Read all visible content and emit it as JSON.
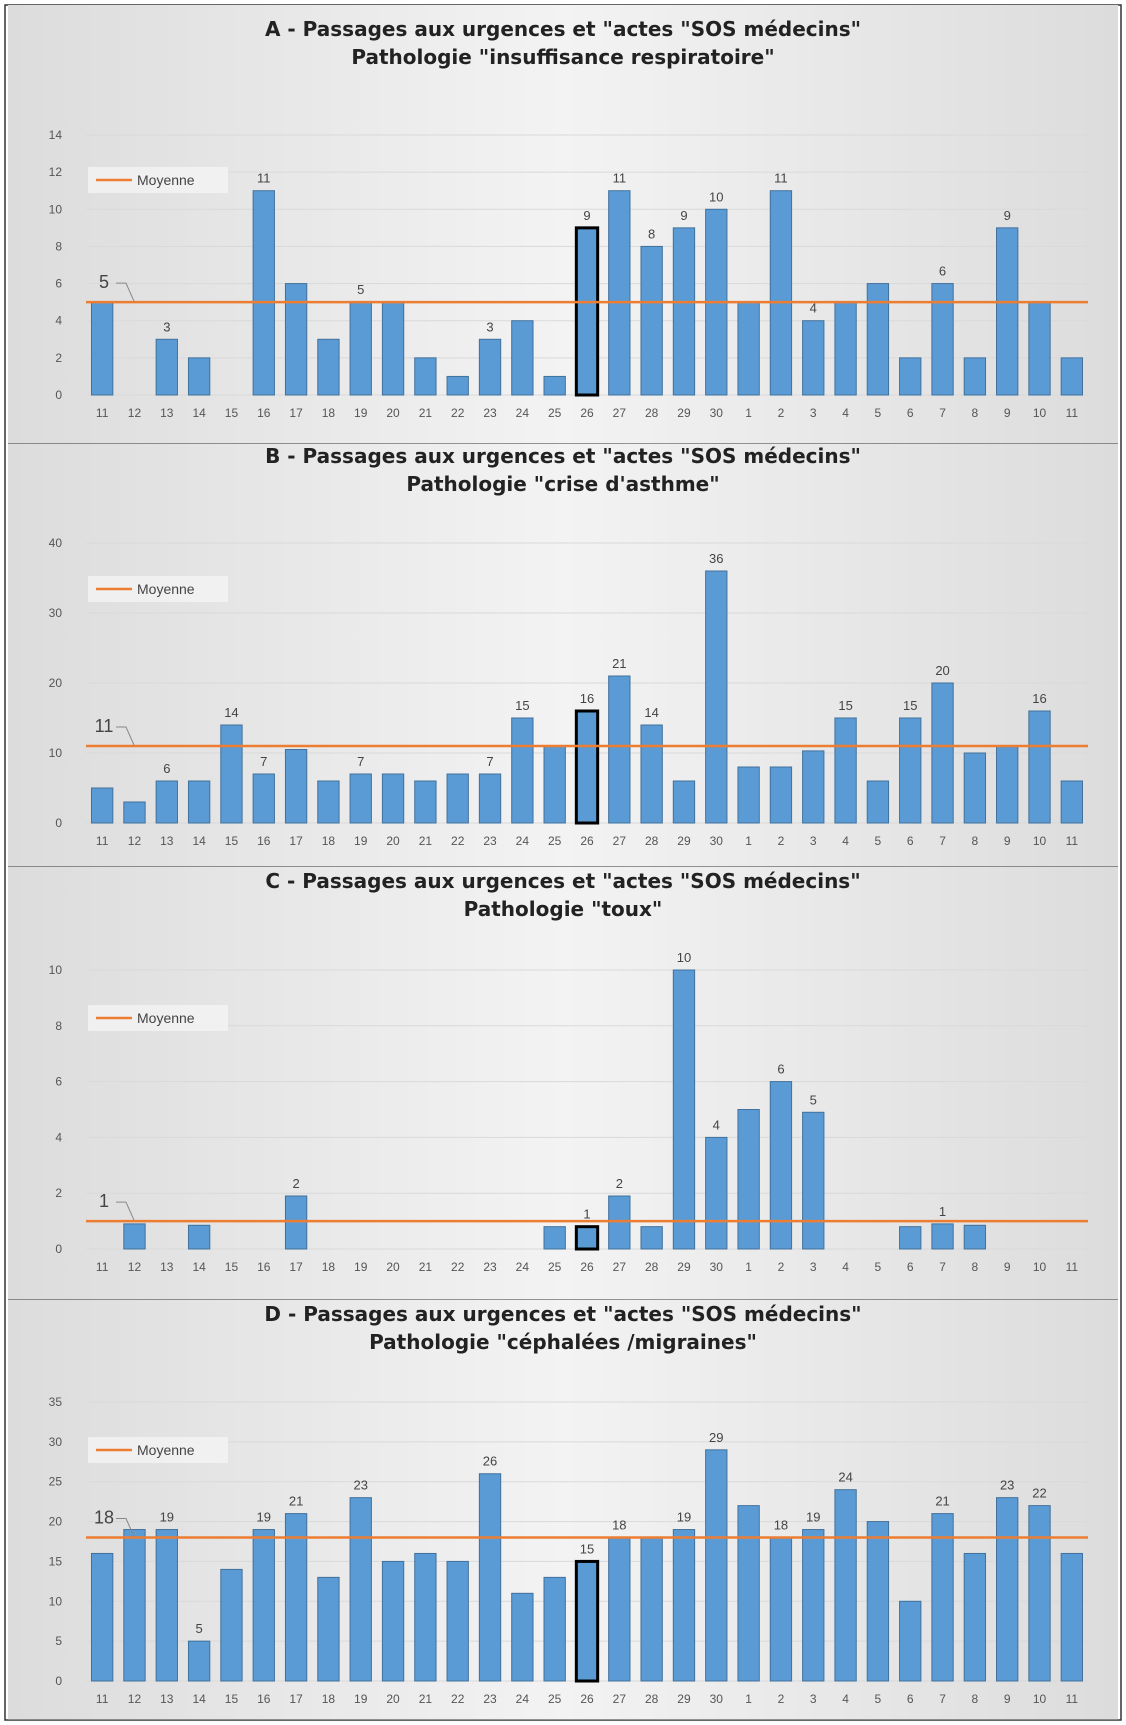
{
  "colors": {
    "bar": "#5b9bd5",
    "bar_edge": "#41719c",
    "highlight_edge": "#000000",
    "mean_line": "#ed7d31",
    "grid": "#d9d9d9",
    "panel_bg": "#e9e9e9"
  },
  "chart_data": [
    {
      "type": "bar",
      "title": "A - Passages aux urgences et \"actes \"SOS médecins\"",
      "subtitle": "Pathologie \"insuffisance respiratoire\"",
      "categories": [
        "11",
        "12",
        "13",
        "14",
        "15",
        "16",
        "17",
        "18",
        "19",
        "20",
        "21",
        "22",
        "23",
        "24",
        "25",
        "26",
        "27",
        "28",
        "29",
        "30",
        "1",
        "2",
        "3",
        "4",
        "5",
        "6",
        "7",
        "8",
        "9",
        "10",
        "11"
      ],
      "values": [
        5,
        0,
        3,
        2,
        0,
        11,
        6,
        3,
        5,
        5,
        2,
        1,
        3,
        4,
        1,
        9,
        11,
        8,
        9,
        10,
        5,
        11,
        4,
        5,
        6,
        2,
        6,
        2,
        9,
        5,
        2
      ],
      "data_labels": [
        "",
        "",
        "3",
        "",
        "",
        "11",
        "",
        "",
        "5",
        "",
        "",
        "",
        "3",
        "",
        "",
        "9",
        "11",
        "8",
        "9",
        "10",
        "",
        "11",
        "4",
        "",
        "",
        "",
        "6",
        "",
        "9",
        "",
        ""
      ],
      "highlight_index": 15,
      "mean": 5,
      "mean_label": "5",
      "legend": "Moyenne",
      "legend_position": "top-left",
      "ylim": [
        0,
        14
      ],
      "yticks": [
        "0",
        "2",
        "4",
        "6",
        "8",
        "10",
        "12",
        "14"
      ],
      "grid": true
    },
    {
      "type": "bar",
      "title": "B - Passages aux urgences et \"actes \"SOS médecins\"",
      "subtitle": "Pathologie \"crise d'asthme\"",
      "categories": [
        "11",
        "12",
        "13",
        "14",
        "15",
        "16",
        "17",
        "18",
        "19",
        "20",
        "21",
        "22",
        "23",
        "24",
        "25",
        "26",
        "27",
        "28",
        "29",
        "30",
        "1",
        "2",
        "3",
        "4",
        "5",
        "6",
        "7",
        "8",
        "9",
        "10",
        "11"
      ],
      "values": [
        5,
        3,
        6,
        6,
        14,
        7,
        10.5,
        6,
        7,
        7,
        6,
        7,
        7,
        15,
        11,
        16,
        21,
        14,
        6,
        36,
        8,
        8,
        10.3,
        15,
        6,
        15,
        20,
        10,
        11,
        16,
        6
      ],
      "data_labels": [
        "",
        "",
        "6",
        "",
        "14",
        "7",
        "",
        "",
        "7",
        "",
        "",
        "",
        "7",
        "15",
        "",
        "16",
        "21",
        "14",
        "",
        "36",
        "",
        "",
        "",
        "15",
        "",
        "15",
        "20",
        "",
        "",
        "16",
        ""
      ],
      "highlight_index": 15,
      "mean": 11,
      "mean_label": "11",
      "legend": "Moyenne",
      "legend_position": "top-left",
      "ylim": [
        0,
        40
      ],
      "yticks": [
        "0",
        "10",
        "20",
        "30",
        "40"
      ],
      "grid": true
    },
    {
      "type": "bar",
      "title": "C - Passages aux urgences et \"actes \"SOS médecins\"",
      "subtitle": "Pathologie \"toux\"",
      "categories": [
        "11",
        "12",
        "13",
        "14",
        "15",
        "16",
        "17",
        "18",
        "19",
        "20",
        "21",
        "22",
        "23",
        "24",
        "25",
        "26",
        "27",
        "28",
        "29",
        "30",
        "1",
        "2",
        "3",
        "4",
        "5",
        "6",
        "7",
        "8",
        "9",
        "10",
        "11"
      ],
      "values": [
        0,
        0.9,
        0,
        0.85,
        0,
        0,
        1.9,
        0,
        0,
        0,
        0,
        0,
        0,
        0,
        0.8,
        0.8,
        1.9,
        0.8,
        10,
        4,
        5,
        6,
        4.9,
        0,
        0,
        0.8,
        0.9,
        0.85,
        0,
        0,
        0
      ],
      "data_labels": [
        "",
        "",
        "",
        "",
        "",
        "",
        "2",
        "",
        "",
        "",
        "",
        "",
        "",
        "",
        "",
        "1",
        "2",
        "",
        "10",
        "4",
        "",
        "6",
        "5",
        "",
        "",
        "",
        "1",
        "",
        "",
        "",
        ""
      ],
      "highlight_index": 15,
      "mean": 1,
      "mean_label": "1",
      "legend": "Moyenne",
      "legend_position": "top-left",
      "ylim": [
        0,
        10
      ],
      "yticks": [
        "0",
        "2",
        "4",
        "6",
        "8",
        "10"
      ],
      "grid": true
    },
    {
      "type": "bar",
      "title": "D - Passages aux urgences et \"actes \"SOS médecins\"",
      "subtitle": "Pathologie \"céphalées /migraines\"",
      "categories": [
        "11",
        "12",
        "13",
        "14",
        "15",
        "16",
        "17",
        "18",
        "19",
        "20",
        "21",
        "22",
        "23",
        "24",
        "25",
        "26",
        "27",
        "28",
        "29",
        "30",
        "1",
        "2",
        "3",
        "4",
        "5",
        "6",
        "7",
        "8",
        "9",
        "10",
        "11"
      ],
      "values": [
        16,
        19,
        19,
        5,
        14,
        19,
        21,
        13,
        23,
        15,
        16,
        15,
        26,
        11,
        13,
        15,
        18,
        18,
        19,
        29,
        22,
        18,
        19,
        24,
        20,
        10,
        21,
        16,
        23,
        22,
        16
      ],
      "data_labels": [
        "",
        "",
        "19",
        "5",
        "",
        "19",
        "21",
        "",
        "23",
        "",
        "",
        "",
        "26",
        "",
        "",
        "15",
        "18",
        "",
        "19",
        "29",
        "",
        "18",
        "19",
        "24",
        "",
        "",
        "21",
        "",
        "23",
        "22",
        ""
      ],
      "highlight_index": 15,
      "mean": 18,
      "mean_label": "18",
      "legend": "Moyenne",
      "legend_position": "top-left",
      "ylim": [
        0,
        35
      ],
      "yticks": [
        "0",
        "5",
        "10",
        "15",
        "20",
        "25",
        "30",
        "35"
      ],
      "grid": true
    }
  ]
}
